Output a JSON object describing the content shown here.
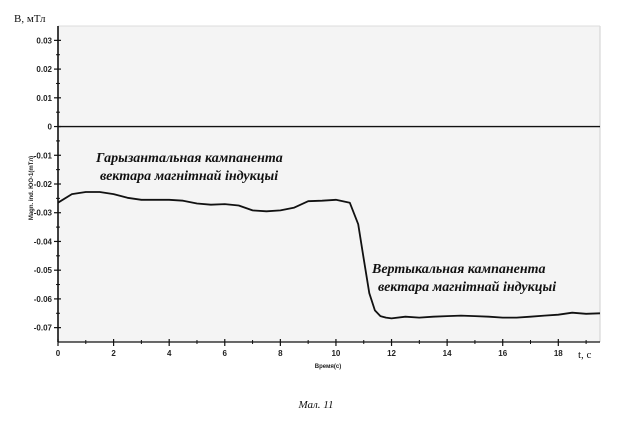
{
  "chart_data": {
    "type": "line",
    "title": "",
    "ylabel": "B, мТл",
    "ylabel_small": "Magn. ind. ЮО-1(mTл)",
    "xlabel": "t, с",
    "xlabel_small": "Время(с)",
    "xlim": [
      0,
      19.5
    ],
    "ylim": [
      -0.075,
      0.035
    ],
    "x_ticks": [
      0,
      2,
      4,
      6,
      8,
      10,
      12,
      14,
      16,
      18
    ],
    "y_ticks": [
      0.03,
      0.02,
      0.01,
      0,
      -0.01,
      -0.02,
      -0.03,
      -0.04,
      -0.05,
      -0.06,
      -0.07
    ],
    "y_tick_labels": [
      "0.03",
      "0.02",
      "0.01",
      "0",
      "-0.01",
      "-0.02",
      "-0.03",
      "-0.04",
      "-0.05",
      "-0.06",
      "-0.07"
    ],
    "grid": false,
    "series": [
      {
        "name": "",
        "x": [
          0,
          0.5,
          1,
          1.5,
          2,
          2.5,
          3,
          3.5,
          4,
          4.5,
          5,
          5.5,
          6,
          6.5,
          7,
          7.5,
          8,
          8.5,
          9,
          9.5,
          10,
          10.5,
          10.8,
          11,
          11.2,
          11.4,
          11.6,
          11.8,
          12,
          12.5,
          13,
          13.5,
          14,
          14.5,
          15,
          15.5,
          16,
          16.5,
          17,
          17.5,
          18,
          18.5,
          19,
          19.5
        ],
        "y": [
          -0.0265,
          -0.0235,
          -0.0228,
          -0.0228,
          -0.0235,
          -0.0248,
          -0.0255,
          -0.0255,
          -0.0255,
          -0.0258,
          -0.0268,
          -0.0272,
          -0.027,
          -0.0275,
          -0.0292,
          -0.0295,
          -0.0292,
          -0.0282,
          -0.026,
          -0.0258,
          -0.0255,
          -0.0265,
          -0.034,
          -0.046,
          -0.058,
          -0.064,
          -0.066,
          -0.0665,
          -0.0668,
          -0.0662,
          -0.0665,
          -0.0662,
          -0.066,
          -0.0658,
          -0.066,
          -0.0662,
          -0.0665,
          -0.0665,
          -0.0662,
          -0.0658,
          -0.0655,
          -0.0648,
          -0.0652,
          -0.065
        ]
      }
    ],
    "annotations": [
      {
        "lines": [
          "Гарызантальная кампанента",
          "вектара магнітнай індукцыі"
        ]
      },
      {
        "lines": [
          "Вертыкальная кампанента",
          "вектара магнітнай індукцыі"
        ]
      }
    ]
  },
  "caption": "Мал. 11"
}
